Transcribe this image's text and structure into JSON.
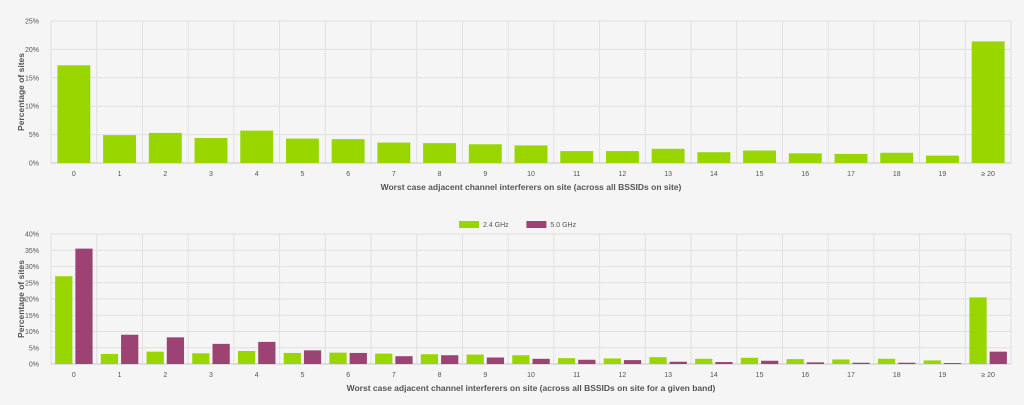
{
  "chart_data": [
    {
      "type": "bar",
      "categories": [
        "0",
        "1",
        "2",
        "3",
        "4",
        "5",
        "6",
        "7",
        "8",
        "9",
        "10",
        "11",
        "12",
        "13",
        "14",
        "15",
        "16",
        "17",
        "18",
        "19",
        "≥ 20"
      ],
      "series": [
        {
          "name": "",
          "color": "#99d600",
          "values": [
            17.2,
            4.9,
            5.3,
            4.4,
            5.7,
            4.3,
            4.2,
            3.6,
            3.5,
            3.3,
            3.1,
            2.1,
            2.1,
            2.5,
            1.9,
            2.2,
            1.7,
            1.6,
            1.8,
            1.3,
            21.4
          ]
        }
      ],
      "xlabel": "Worst case adjacent channel interferers on site (across all BSSIDs on site)",
      "ylabel": "Percentage of sites",
      "ylim": [
        0,
        25
      ],
      "yticks": [
        0,
        5,
        10,
        15,
        20,
        25
      ],
      "ytick_labels": [
        "0%",
        "5%",
        "10%",
        "15%",
        "20%",
        "25%"
      ],
      "grid": true,
      "legend": "none"
    },
    {
      "type": "bar",
      "categories": [
        "0",
        "1",
        "2",
        "3",
        "4",
        "5",
        "6",
        "7",
        "8",
        "9",
        "10",
        "11",
        "12",
        "13",
        "14",
        "15",
        "16",
        "17",
        "18",
        "19",
        "≥ 20"
      ],
      "series": [
        {
          "name": "2.4 GHz",
          "color": "#99d600",
          "values": [
            27.0,
            3.1,
            3.8,
            3.3,
            4.0,
            3.4,
            3.5,
            3.2,
            3.0,
            2.9,
            2.7,
            1.8,
            1.7,
            2.1,
            1.6,
            1.9,
            1.5,
            1.4,
            1.6,
            1.1,
            20.5
          ]
        },
        {
          "name": "5.0 GHz",
          "color": "#9c4373",
          "values": [
            35.5,
            9.0,
            8.2,
            6.2,
            6.8,
            4.2,
            3.4,
            2.4,
            2.7,
            2.0,
            1.6,
            1.3,
            1.2,
            0.7,
            0.6,
            1.0,
            0.5,
            0.4,
            0.4,
            0.3,
            3.8
          ]
        }
      ],
      "xlabel": "Worst case adjacent channel interferers on site (across all BSSIDs on site for a given band)",
      "ylabel": "Percentage of sites",
      "ylim": [
        0,
        40
      ],
      "yticks": [
        0,
        5,
        10,
        15,
        20,
        25,
        30,
        35,
        40
      ],
      "ytick_labels": [
        "0%",
        "5%",
        "10%",
        "15%",
        "20%",
        "25%",
        "30%",
        "35%",
        "40%"
      ],
      "grid": true,
      "legend": "top-center"
    }
  ]
}
